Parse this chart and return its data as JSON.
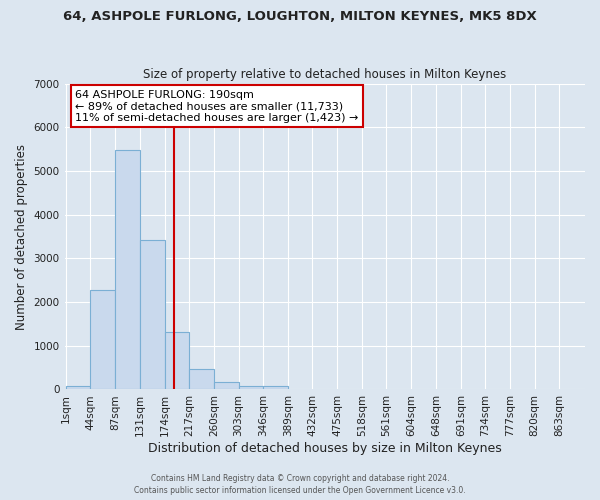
{
  "title1": "64, ASHPOLE FURLONG, LOUGHTON, MILTON KEYNES, MK5 8DX",
  "title2": "Size of property relative to detached houses in Milton Keynes",
  "xlabel": "Distribution of detached houses by size in Milton Keynes",
  "ylabel": "Number of detached properties",
  "annotation_line1": "64 ASHPOLE FURLONG: 190sqm",
  "annotation_line2": "← 89% of detached houses are smaller (11,733)",
  "annotation_line3": "11% of semi-detached houses are larger (1,423) →",
  "property_size": 190,
  "bin_width": 43,
  "bins_start": [
    1,
    44,
    87,
    131,
    174,
    217,
    260,
    303,
    346,
    389,
    432,
    475,
    518,
    561,
    604,
    648,
    691,
    734,
    777,
    820,
    863
  ],
  "bin_labels": [
    "1sqm",
    "44sqm",
    "87sqm",
    "131sqm",
    "174sqm",
    "217sqm",
    "260sqm",
    "303sqm",
    "346sqm",
    "389sqm",
    "432sqm",
    "475sqm",
    "518sqm",
    "561sqm",
    "604sqm",
    "648sqm",
    "691sqm",
    "734sqm",
    "777sqm",
    "820sqm",
    "863sqm"
  ],
  "counts": [
    70,
    2270,
    5480,
    3420,
    1320,
    460,
    160,
    80,
    75,
    0,
    0,
    0,
    0,
    0,
    0,
    0,
    0,
    0,
    0,
    0,
    0
  ],
  "bar_color": "#c9d9ed",
  "bar_edge_color": "#7bafd4",
  "line_color": "#cc0000",
  "background_color": "#dce6f0",
  "ylim": [
    0,
    7000
  ],
  "yticks": [
    0,
    1000,
    2000,
    3000,
    4000,
    5000,
    6000,
    7000
  ],
  "font_color": "#222222",
  "footer1": "Contains HM Land Registry data © Crown copyright and database right 2024.",
  "footer2": "Contains public sector information licensed under the Open Government Licence v3.0."
}
